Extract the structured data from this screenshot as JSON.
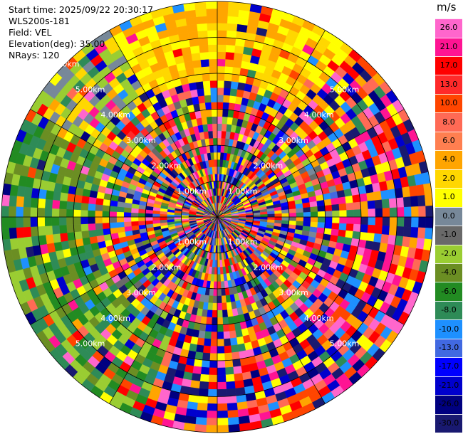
{
  "header": {
    "start_time": "Start time: 2025/09/22 20:30:17",
    "station": "WLS200s-181",
    "field": "Field: VEL",
    "elevation": "Elevation(deg): 35.00",
    "nrays": "NRays: 120"
  },
  "chart_data": {
    "type": "heatmap",
    "projection": "polar-ppi",
    "field": "VEL",
    "units": "m/s",
    "ring_labels_km": [
      "1.00km",
      "2.00km",
      "3.00km",
      "4.00km",
      "5.00km",
      "6.00km"
    ],
    "ring_label_bearings_deg": [
      45,
      135,
      225,
      315
    ],
    "nrays": 120,
    "gate_rings": 30,
    "colorbar": {
      "unit": "m/s",
      "ticks": [
        "26.0",
        "21.0",
        "17.0",
        "13.0",
        "10.0",
        "8.0",
        "6.0",
        "4.0",
        "2.0",
        "1.0",
        "0.0",
        "-1.0",
        "-2.0",
        "-4.0",
        "-6.0",
        "-8.0",
        "-10.0",
        "-13.0",
        "-17.0",
        "-21.0",
        "-26.0",
        "-30.0"
      ],
      "colors": [
        "#ff66cc",
        "#ff1493",
        "#ff0000",
        "#ff2a2a",
        "#ff4500",
        "#ff6a55",
        "#ff7f50",
        "#ffa500",
        "#ffd700",
        "#ffff00",
        "#778899",
        "#696969",
        "#9acd32",
        "#6b8e23",
        "#228b22",
        "#2e8b57",
        "#1e90ff",
        "#4169e1",
        "#0000ff",
        "#0000cd",
        "#000080",
        "#191970"
      ]
    },
    "regions": {
      "near_north_sector_bearing_deg": [
        330,
        40
      ],
      "near_north_sector_colors": [
        "#ffff00",
        "#ffd700",
        "#ffa500"
      ],
      "near_northwest_sector_bearing_deg": [
        300,
        330
      ],
      "near_northwest_sector_colors": [
        "#778899",
        "#ffd700",
        "#9acd32"
      ],
      "west_southwest_sector_bearing_deg": [
        200,
        300
      ],
      "west_southwest_sector_colors": [
        "#6b8e23",
        "#228b22",
        "#9acd32",
        "#2e8b57"
      ],
      "far_range_background_colors": [
        "#ff1493",
        "#ff6a55",
        "#0000cd",
        "#ffa500",
        "#ff0000",
        "#191970",
        "#ffff00",
        "#2e8b57",
        "#ff66cc",
        "#000080",
        "#1e90ff",
        "#ff4500"
      ]
    }
  }
}
